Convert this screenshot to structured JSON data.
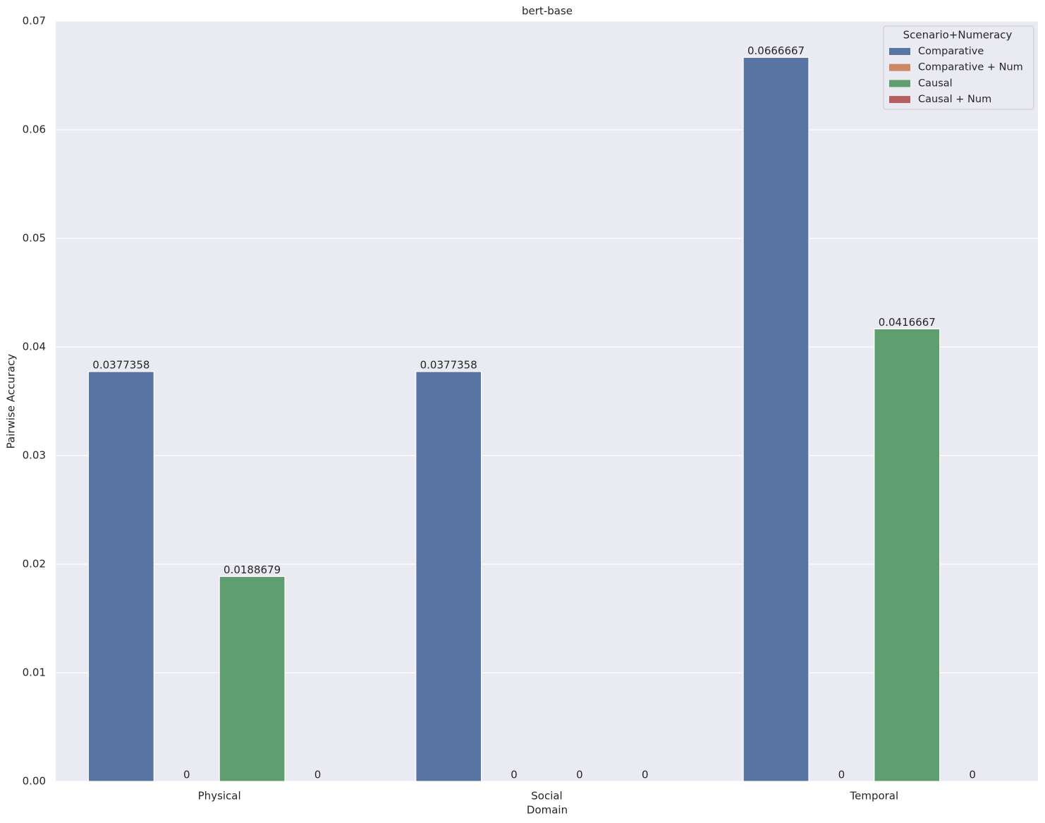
{
  "chart_data": {
    "type": "bar",
    "title": "bert-base",
    "xlabel": "Domain",
    "ylabel": "Pairwise Accuracy",
    "categories": [
      "Physical",
      "Social",
      "Temporal"
    ],
    "series": [
      {
        "name": "Comparative",
        "color": "#5975a4",
        "values": [
          0.0377358,
          0.0377358,
          0.0666667
        ]
      },
      {
        "name": "Comparative + Num",
        "color": "#cc8963",
        "values": [
          0,
          0,
          0
        ]
      },
      {
        "name": "Causal",
        "color": "#5f9e6e",
        "values": [
          0.0188679,
          0,
          0.0416667
        ]
      },
      {
        "name": "Causal + Num",
        "color": "#b55d60",
        "values": [
          0,
          0,
          0
        ]
      }
    ],
    "legend_title": "Scenario+Numeracy",
    "legend_position": "upper right",
    "ylim": [
      0,
      0.07
    ],
    "yticks": [
      {
        "value": 0,
        "label": "0.00"
      },
      0.01,
      0.02,
      0.03,
      0.04,
      0.05,
      0.06,
      0.07
    ],
    "grid": true
  }
}
